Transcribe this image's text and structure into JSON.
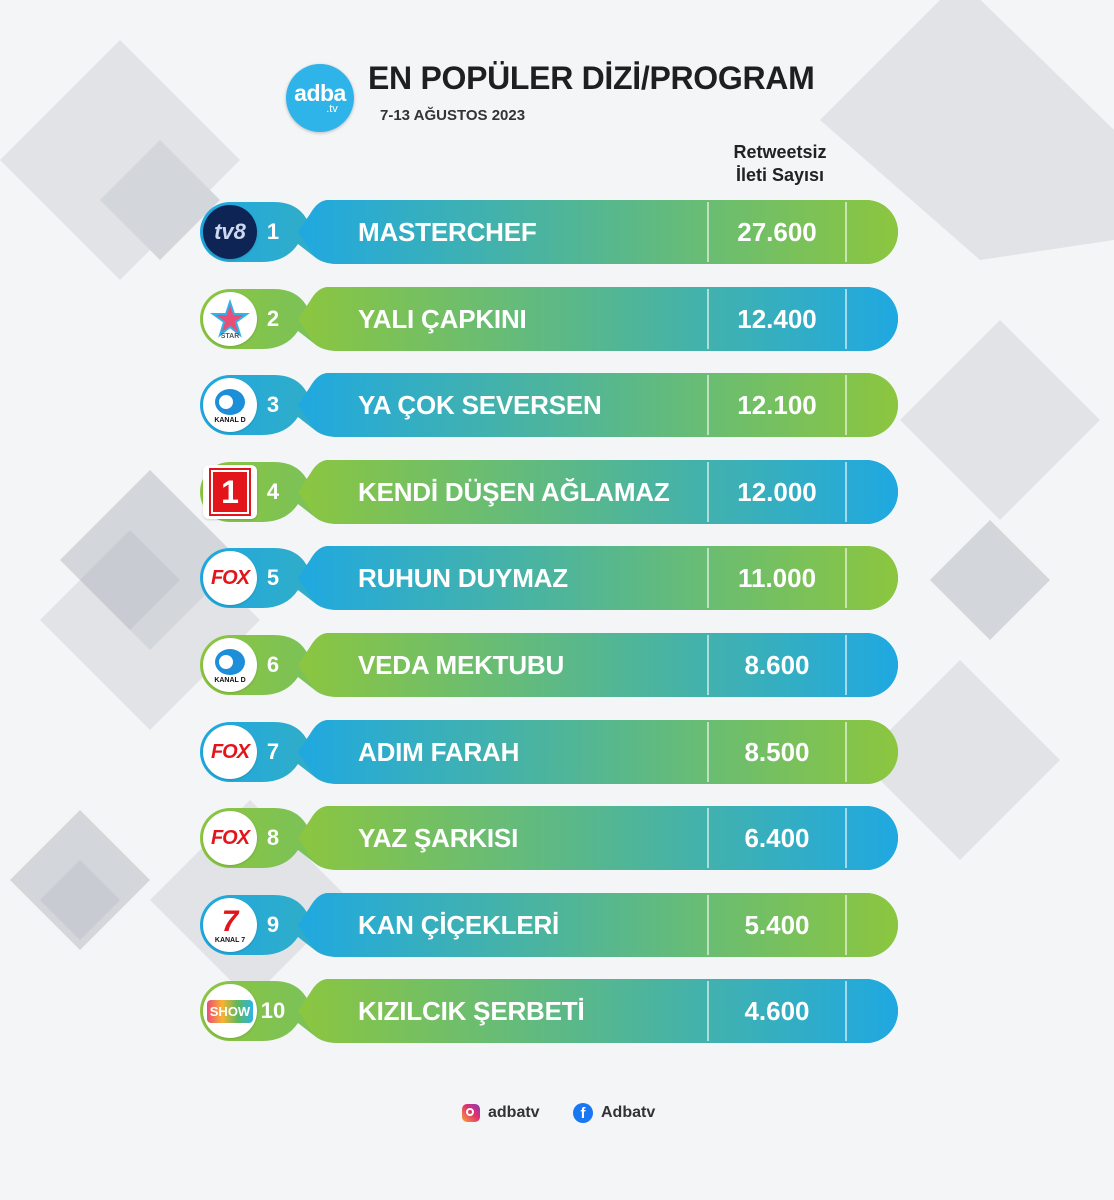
{
  "header": {
    "logo_main": "adba",
    "logo_sub": ".tv",
    "title": "EN POPÜLER DİZİ/PROGRAM",
    "date_range": "7-13 AĞUSTOS 2023",
    "column_header_line1": "Retweetsiz",
    "column_header_line2": "İleti Sayısı"
  },
  "colors": {
    "blue": "#1fa8e1",
    "green": "#8cc63f",
    "dark_blue": "#0d2454",
    "red": "#e3151b"
  },
  "rows": [
    {
      "rank": "1",
      "show": "MASTERCHEF",
      "count": "27.600",
      "channel": "tv8-logo",
      "channel_text": "tv8"
    },
    {
      "rank": "2",
      "show": "YALI ÇAPKINI",
      "count": "12.400",
      "channel": "star-logo",
      "channel_text": "STAR"
    },
    {
      "rank": "3",
      "show": "YA ÇOK SEVERSEN",
      "count": "12.100",
      "channel": "kanal-d-logo",
      "channel_text": "KANAL D"
    },
    {
      "rank": "4",
      "show": "KENDİ DÜŞEN AĞLAMAZ",
      "count": "12.000",
      "channel": "trt1-logo",
      "channel_text": "1"
    },
    {
      "rank": "5",
      "show": "RUHUN DUYMAZ",
      "count": "11.000",
      "channel": "fox-logo",
      "channel_text": "FOX"
    },
    {
      "rank": "6",
      "show": "VEDA MEKTUBU",
      "count": "8.600",
      "channel": "kanal-d-logo",
      "channel_text": "KANAL D"
    },
    {
      "rank": "7",
      "show": "ADIM FARAH",
      "count": "8.500",
      "channel": "fox-logo",
      "channel_text": "FOX"
    },
    {
      "rank": "8",
      "show": "YAZ ŞARKISI",
      "count": "6.400",
      "channel": "fox-logo",
      "channel_text": "FOX"
    },
    {
      "rank": "9",
      "show": "KAN ÇİÇEKLERİ",
      "count": "5.400",
      "channel": "kanal-7-logo",
      "channel_text": "KANAL 7"
    },
    {
      "rank": "10",
      "show": "KIZILCIK ŞERBETİ",
      "count": "4.600",
      "channel": "show-tv-logo",
      "channel_text": "SHOW"
    }
  ],
  "footer": {
    "instagram_handle": "adbatv",
    "facebook_handle": "Adbatv"
  }
}
